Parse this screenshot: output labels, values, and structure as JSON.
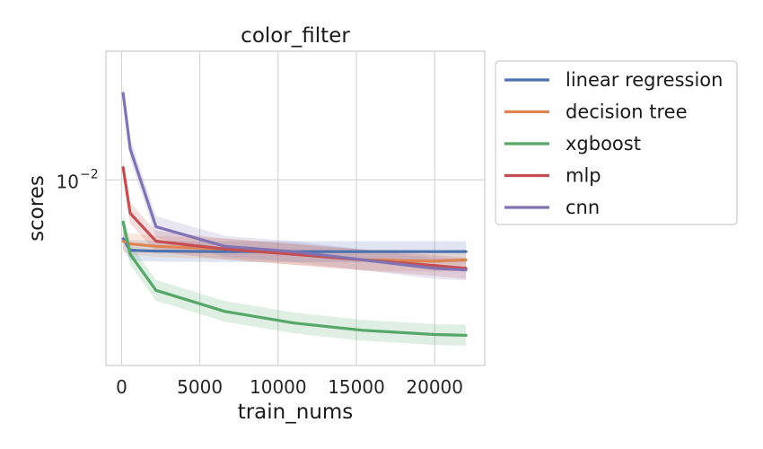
{
  "chart_data": {
    "type": "line",
    "title": "color_filter",
    "xlabel": "train_nums",
    "ylabel": "scores",
    "x_scale": "linear",
    "y_scale": "log",
    "xlim": [
      -1000,
      23200
    ],
    "ylim": [
      0.00355,
      0.0205
    ],
    "x_ticks": [
      0,
      5000,
      10000,
      15000,
      20000
    ],
    "x_tick_labels": [
      "0",
      "5000",
      "10000",
      "15000",
      "20000"
    ],
    "y_ticks": [
      0.01
    ],
    "y_tick_labels": [
      {
        "base": "10",
        "exp": "−2"
      }
    ],
    "grid": true,
    "legend_position": "outside-right",
    "x": [
      100,
      550,
      2200,
      6600,
      11000,
      15400,
      20000,
      22000
    ],
    "series": [
      {
        "name": "linear regression",
        "color": "#4c72b0",
        "values": [
          0.0072,
          0.00675,
          0.00672,
          0.0067,
          0.0067,
          0.0067,
          0.0067,
          0.0067
        ]
      },
      {
        "name": "decision tree",
        "color": "#dd8452",
        "values": [
          0.0071,
          0.007,
          0.0069,
          0.0068,
          0.0066,
          0.0064,
          0.00635,
          0.0064
        ]
      },
      {
        "name": "xgboost",
        "color": "#55a868",
        "values": [
          0.0079,
          0.0066,
          0.0054,
          0.0048,
          0.0045,
          0.00432,
          0.00422,
          0.0042
        ]
      },
      {
        "name": "mlp",
        "color": "#c44e52",
        "values": [
          0.0107,
          0.0083,
          0.0071,
          0.0068,
          0.0066,
          0.0064,
          0.0062,
          0.0061
        ]
      },
      {
        "name": "cnn",
        "color": "#8172b3",
        "values": [
          0.0162,
          0.0119,
          0.0077,
          0.0069,
          0.0067,
          0.0064,
          0.0061,
          0.00605
        ]
      }
    ]
  }
}
